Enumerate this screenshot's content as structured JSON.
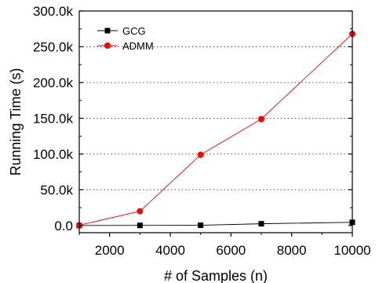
{
  "chart_data": {
    "type": "line",
    "xlabel": "# of Samples (n)",
    "ylabel": "Running Time (s)",
    "xlim": [
      1000,
      10000
    ],
    "ylim": [
      -10000,
      300000
    ],
    "x_ticks": [
      2000,
      4000,
      6000,
      8000,
      10000
    ],
    "x_tick_labels": [
      "2000",
      "4000",
      "6000",
      "8000",
      "10000"
    ],
    "y_ticks": [
      0,
      50000,
      100000,
      150000,
      200000,
      250000,
      300000
    ],
    "y_tick_labels": [
      "0.0",
      "50.0k",
      "100.0k",
      "150.0k",
      "200.0k",
      "250.0k",
      "300.0k"
    ],
    "grid": "horizontal dotted",
    "legend_position": "top-left",
    "series": [
      {
        "name": "GCG",
        "color": "#000000",
        "marker": "square",
        "x": [
          1000,
          3000,
          5000,
          7000,
          10000
        ],
        "y": [
          0,
          200,
          400,
          2500,
          4500
        ]
      },
      {
        "name": "ADMM",
        "color": "#ff0000",
        "marker": "circle",
        "x": [
          1000,
          3000,
          5000,
          7000,
          10000
        ],
        "y": [
          500,
          20000,
          99000,
          149000,
          268000
        ]
      }
    ]
  }
}
